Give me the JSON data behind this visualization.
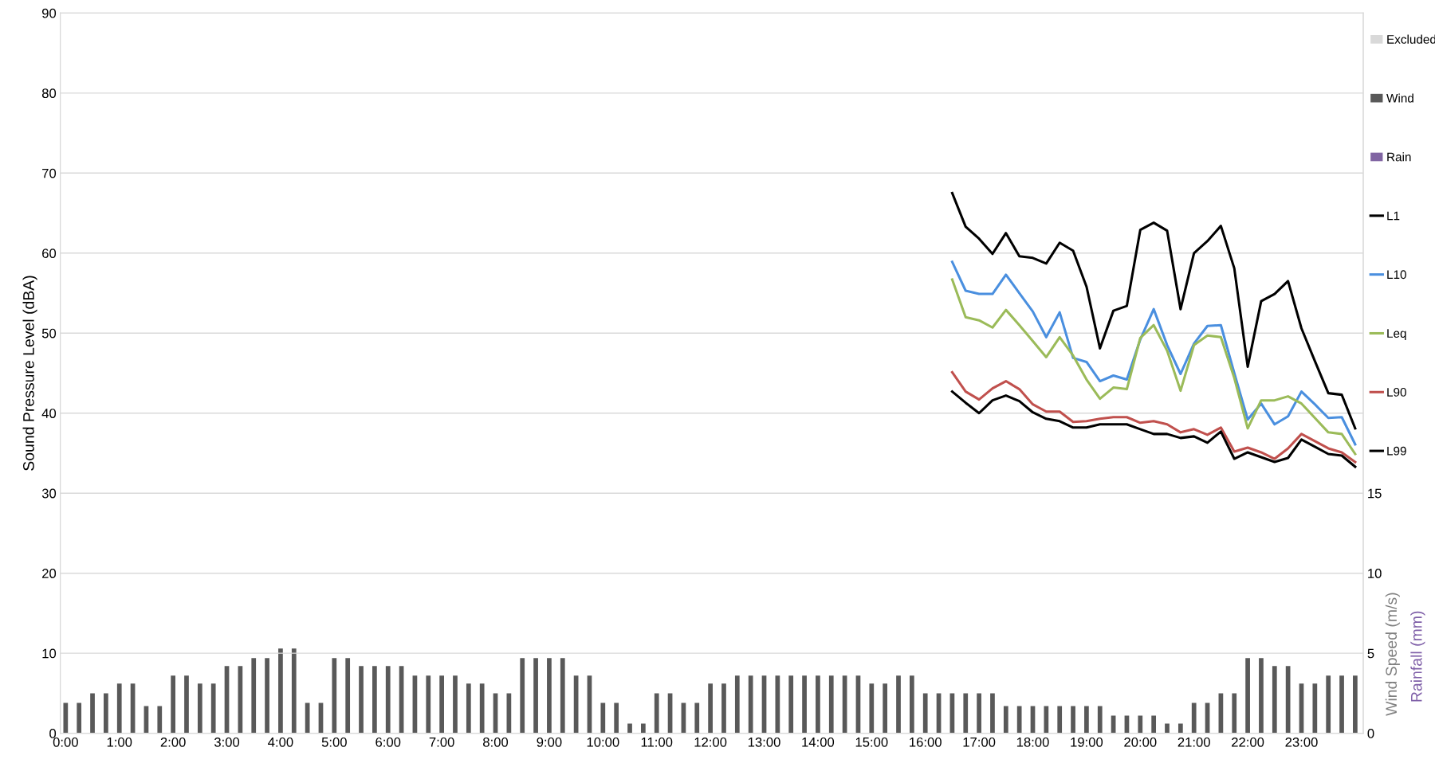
{
  "chart_data": {
    "type": "line",
    "ylabel": "Sound Pressure Level (dBA)",
    "y2label": "Wind Speed (m/s)",
    "y3label": "Rainfall (mm)",
    "xlim": [
      -0.1,
      24.15
    ],
    "xticks": [
      {
        "value": 0,
        "label": "0:00"
      },
      {
        "value": 1,
        "label": "1:00"
      },
      {
        "value": 2,
        "label": "2:00"
      },
      {
        "value": 3,
        "label": "3:00"
      },
      {
        "value": 4,
        "label": "4:00"
      },
      {
        "value": 5,
        "label": "5:00"
      },
      {
        "value": 6,
        "label": "6:00"
      },
      {
        "value": 7,
        "label": "7:00"
      },
      {
        "value": 8,
        "label": "8:00"
      },
      {
        "value": 9,
        "label": "9:00"
      },
      {
        "value": 10,
        "label": "10:00"
      },
      {
        "value": 11,
        "label": "11:00"
      },
      {
        "value": 12,
        "label": "12:00"
      },
      {
        "value": 13,
        "label": "13:00"
      },
      {
        "value": 14,
        "label": "14:00"
      },
      {
        "value": 15,
        "label": "15:00"
      },
      {
        "value": 16,
        "label": "16:00"
      },
      {
        "value": 17,
        "label": "17:00"
      },
      {
        "value": 18,
        "label": "18:00"
      },
      {
        "value": 19,
        "label": "19:00"
      },
      {
        "value": 20,
        "label": "20:00"
      },
      {
        "value": 21,
        "label": "21:00"
      },
      {
        "value": 22,
        "label": "22:00"
      },
      {
        "value": 23,
        "label": "23:00"
      }
    ],
    "ylim": [
      0,
      90
    ],
    "yticks": [
      0,
      10,
      20,
      30,
      40,
      50,
      60,
      70,
      80,
      90
    ],
    "y2lim": [
      0,
      45
    ],
    "y2ticks": [
      0,
      5,
      10,
      15
    ],
    "grid": "y",
    "legend": "right",
    "marker": "none",
    "line_style": "solid",
    "series": [
      {
        "name": "Excluded",
        "type": "bar",
        "axis": "y2",
        "color": "#d9d9d9"
      },
      {
        "name": "Wind",
        "type": "bar",
        "axis": "y2",
        "color": "#595959",
        "x": [
          0,
          0.25,
          0.5,
          0.75,
          1,
          1.25,
          1.5,
          1.75,
          2,
          2.25,
          2.5,
          2.75,
          3,
          3.25,
          3.5,
          3.75,
          4,
          4.25,
          4.5,
          4.75,
          5,
          5.25,
          5.5,
          5.75,
          6,
          6.25,
          6.5,
          6.75,
          7,
          7.25,
          7.5,
          7.75,
          8,
          8.25,
          8.5,
          8.75,
          9,
          9.25,
          9.5,
          9.75,
          10,
          10.25,
          10.5,
          10.75,
          11,
          11.25,
          11.5,
          11.75,
          12,
          12.25,
          12.5,
          12.75,
          13,
          13.25,
          13.5,
          13.75,
          14,
          14.25,
          14.5,
          14.75,
          15,
          15.25,
          15.5,
          15.75,
          16,
          16.25,
          16.5,
          16.75,
          17,
          17.25,
          17.5,
          17.75,
          18,
          18.25,
          18.5,
          18.75,
          19,
          19.25,
          19.5,
          19.75,
          20,
          20.25,
          20.5,
          20.75,
          21,
          21.25,
          21.5,
          21.75,
          22,
          22.25,
          22.5,
          22.75,
          23,
          23.25,
          23.5,
          23.75,
          24
        ],
        "values": [
          1.9,
          1.9,
          2.5,
          2.5,
          3.1,
          3.1,
          1.7,
          1.7,
          3.6,
          3.6,
          3.1,
          3.1,
          4.2,
          4.2,
          4.7,
          4.7,
          5.3,
          5.3,
          1.9,
          1.9,
          4.7,
          4.7,
          4.2,
          4.2,
          4.2,
          4.2,
          3.6,
          3.6,
          3.6,
          3.6,
          3.1,
          3.1,
          2.5,
          2.5,
          4.7,
          4.7,
          4.7,
          4.7,
          3.6,
          3.6,
          1.9,
          1.9,
          0.6,
          0.6,
          2.5,
          2.5,
          1.9,
          1.9,
          3.1,
          3.1,
          3.6,
          3.6,
          3.6,
          3.6,
          3.6,
          3.6,
          3.6,
          3.6,
          3.6,
          3.6,
          3.1,
          3.1,
          3.6,
          3.6,
          2.5,
          2.5,
          2.5,
          2.5,
          2.5,
          2.5,
          1.7,
          1.7,
          1.7,
          1.7,
          1.7,
          1.7,
          1.7,
          1.7,
          1.1,
          1.1,
          1.1,
          1.1,
          0.6,
          0.6,
          1.9,
          1.9,
          2.5,
          2.5,
          4.7,
          4.7,
          4.2,
          4.2,
          3.1,
          3.1,
          3.6,
          3.6,
          3.6
        ]
      },
      {
        "name": "Rain",
        "type": "bar",
        "axis": "y2",
        "color": "#8064a2"
      },
      {
        "name": "L1",
        "color": "#000000",
        "x": [
          16.5,
          16.75,
          17,
          17.25,
          17.5,
          17.75,
          18,
          18.25,
          18.5,
          18.75,
          19,
          19.25,
          19.5,
          19.75,
          20,
          20.25,
          20.5,
          20.75,
          21,
          21.25,
          21.5,
          21.75,
          22,
          22.25,
          22.5,
          22.75,
          23,
          23.25,
          23.5,
          23.75,
          24
        ],
        "values": [
          67.5,
          63.3,
          61.8,
          59.9,
          62.5,
          59.6,
          59.4,
          58.7,
          61.3,
          60.3,
          55.8,
          48.1,
          52.8,
          53.4,
          62.9,
          63.8,
          62.8,
          53.0,
          60.0,
          61.5,
          63.4,
          58.1,
          45.8,
          54.0,
          54.9,
          56.5,
          50.6,
          46.5,
          42.5,
          42.3,
          38.1
        ]
      },
      {
        "name": "L10",
        "color": "#4a8fdf",
        "x": [
          16.5,
          16.75,
          17,
          17.25,
          17.5,
          17.75,
          18,
          18.25,
          18.5,
          18.75,
          19,
          19.25,
          19.5,
          19.75,
          20,
          20.25,
          20.5,
          20.75,
          21,
          21.25,
          21.5,
          21.75,
          22,
          22.25,
          22.5,
          22.75,
          23,
          23.25,
          23.5,
          23.75,
          24
        ],
        "values": [
          58.9,
          55.3,
          54.9,
          54.9,
          57.3,
          55.0,
          52.7,
          49.5,
          52.6,
          46.9,
          46.4,
          44.0,
          44.7,
          44.2,
          49.2,
          53.0,
          48.5,
          44.9,
          48.7,
          50.9,
          51.0,
          45.0,
          39.2,
          41.2,
          38.6,
          39.6,
          42.7,
          41.1,
          39.4,
          39.5,
          36.1
        ]
      },
      {
        "name": "Leq",
        "color": "#9bbb59",
        "x": [
          16.5,
          16.75,
          17,
          17.25,
          17.5,
          17.75,
          18,
          18.25,
          18.5,
          18.75,
          19,
          19.25,
          19.5,
          19.75,
          20,
          20.25,
          20.5,
          20.75,
          21,
          21.25,
          21.5,
          21.75,
          22,
          22.25,
          22.5,
          22.75,
          23,
          23.25,
          23.5,
          23.75,
          24
        ],
        "values": [
          56.7,
          52.0,
          51.6,
          50.7,
          52.9,
          51.0,
          49.0,
          47.0,
          49.5,
          47.2,
          44.2,
          41.8,
          43.2,
          43.0,
          49.4,
          51.0,
          47.8,
          42.8,
          48.5,
          49.7,
          49.5,
          44.4,
          38.1,
          41.6,
          41.6,
          42.1,
          41.2,
          39.4,
          37.6,
          37.4,
          34.9
        ]
      },
      {
        "name": "L90",
        "color": "#c0504d",
        "x": [
          16.5,
          16.75,
          17,
          17.25,
          17.5,
          17.75,
          18,
          18.25,
          18.5,
          18.75,
          19,
          19.25,
          19.5,
          19.75,
          20,
          20.25,
          20.5,
          20.75,
          21,
          21.25,
          21.5,
          21.75,
          22,
          22.25,
          22.5,
          22.75,
          23,
          23.25,
          23.5,
          23.75,
          24
        ],
        "values": [
          45.1,
          42.7,
          41.7,
          43.1,
          44.0,
          43.0,
          41.1,
          40.2,
          40.2,
          38.9,
          39.0,
          39.3,
          39.5,
          39.5,
          38.8,
          39.0,
          38.6,
          37.6,
          38.0,
          37.3,
          38.2,
          35.2,
          35.7,
          35.1,
          34.3,
          35.6,
          37.4,
          36.5,
          35.6,
          35.1,
          33.9
        ]
      },
      {
        "name": "L99",
        "color": "#000000",
        "x": [
          16.5,
          16.75,
          17,
          17.25,
          17.5,
          17.75,
          18,
          18.25,
          18.5,
          18.75,
          19,
          19.25,
          19.5,
          19.75,
          20,
          20.25,
          20.5,
          20.75,
          21,
          21.25,
          21.5,
          21.75,
          22,
          22.25,
          22.5,
          22.75,
          23,
          23.25,
          23.5,
          23.75,
          24
        ],
        "values": [
          42.7,
          41.3,
          40.0,
          41.6,
          42.2,
          41.5,
          40.1,
          39.3,
          39.0,
          38.2,
          38.2,
          38.6,
          38.6,
          38.6,
          38.0,
          37.4,
          37.4,
          36.9,
          37.1,
          36.3,
          37.7,
          34.3,
          35.1,
          34.5,
          33.9,
          34.4,
          36.7,
          35.8,
          34.9,
          34.7,
          33.3
        ]
      }
    ]
  }
}
